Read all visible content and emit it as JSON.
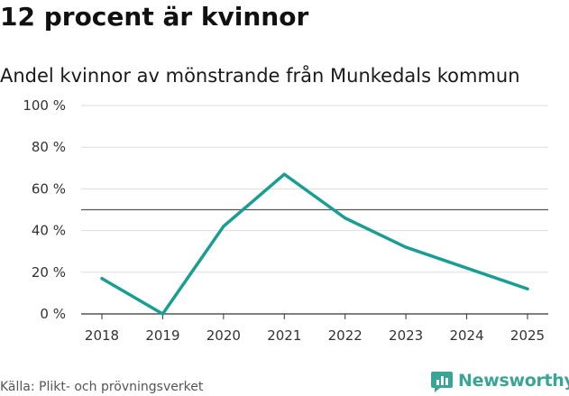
{
  "title": "12 procent är kvinnor",
  "subtitle": "Andel kvinnor av mönstrande från Munkedals kommun",
  "source": "Källa: Plikt- och prövningsverket",
  "brand": "Newsworthy",
  "colors": {
    "line": "#1a9e92",
    "reference": "#555555",
    "grid": "#dddddd",
    "brand": "#3aa597"
  },
  "chart_data": {
    "type": "line",
    "title": "12 procent är kvinnor",
    "subtitle": "Andel kvinnor av mönstrande från Munkedals kommun",
    "xlabel": "",
    "ylabel": "",
    "categories": [
      "2018",
      "2019",
      "2020",
      "2021",
      "2022",
      "2023",
      "2024",
      "2025"
    ],
    "series": [
      {
        "values": [
          17,
          0,
          42,
          67,
          46,
          32,
          22,
          12
        ]
      }
    ],
    "ylim": [
      0,
      100
    ],
    "yticks": [
      0,
      20,
      40,
      60,
      80,
      100
    ],
    "ytick_labels": [
      "0 %",
      "20 %",
      "40 %",
      "60 %",
      "80 %",
      "100 %"
    ],
    "reference_line": 50,
    "grid": true,
    "legend": "none"
  }
}
